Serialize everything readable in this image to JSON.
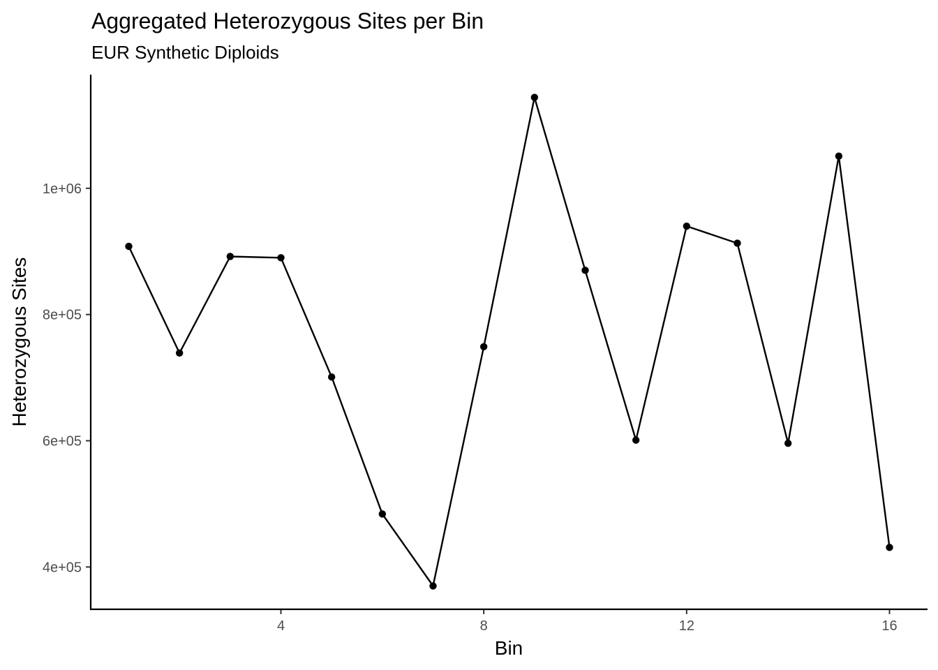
{
  "chart_data": {
    "type": "line",
    "title": "Aggregated Heterozygous Sites per Bin",
    "subtitle": "EUR Synthetic Diploids",
    "xlabel": "Bin",
    "ylabel": "Heterozygous Sites",
    "x": [
      1,
      2,
      3,
      4,
      5,
      6,
      7,
      8,
      9,
      10,
      11,
      12,
      13,
      14,
      15,
      16
    ],
    "series": [
      {
        "values": [
          908000,
          739000,
          892000,
          890000,
          701000,
          484000,
          370000,
          749000,
          1144000,
          870000,
          601000,
          940000,
          913000,
          596000,
          1051000,
          431000
        ]
      }
    ],
    "xlim": [
      0.25,
      16.75
    ],
    "ylim": [
      333000,
      1180000
    ],
    "x_ticks": [
      4,
      8,
      12,
      16
    ],
    "x_tick_labels": [
      "4",
      "8",
      "12",
      "16"
    ],
    "y_ticks": [
      400000,
      600000,
      800000,
      1000000
    ],
    "y_tick_labels": [
      "4e+05",
      "6e+05",
      "8e+05",
      "1e+06"
    ],
    "grid": false,
    "legend": "none",
    "colors": {
      "line": "#000000",
      "point": "#000000",
      "tick_text": "#4d4d4d"
    }
  }
}
